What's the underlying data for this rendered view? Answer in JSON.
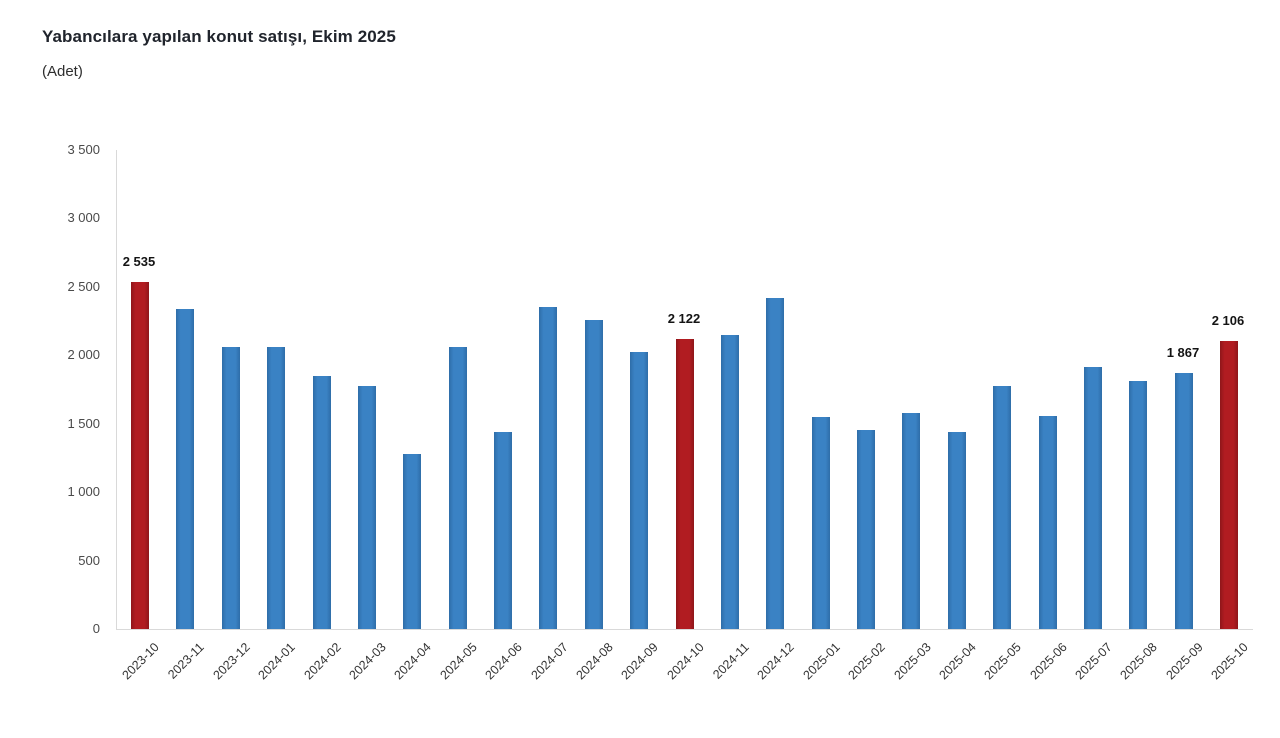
{
  "header": {
    "title": "Yabancılara yapılan konut satışı, Ekim 2025",
    "subtitle": "(Adet)"
  },
  "chart_data": {
    "type": "bar",
    "title": "Yabancılara yapılan konut satışı, Ekim 2025",
    "unit_label": "(Adet)",
    "xlabel": "",
    "ylabel": "",
    "ylim": [
      0,
      3500
    ],
    "ytick_step": 500,
    "ytick_labels": [
      "0",
      "500",
      "1 000",
      "1 500",
      "2 000",
      "2 500",
      "3 000",
      "3 500"
    ],
    "grid": false,
    "legend": "none",
    "categories": [
      "2023-10",
      "2023-11",
      "2023-12",
      "2024-01",
      "2024-02",
      "2024-03",
      "2024-04",
      "2024-05",
      "2024-06",
      "2024-07",
      "2024-08",
      "2024-09",
      "2024-10",
      "2024-11",
      "2024-12",
      "2025-01",
      "2025-02",
      "2025-03",
      "2025-04",
      "2025-05",
      "2025-06",
      "2025-07",
      "2025-08",
      "2025-09",
      "2025-10"
    ],
    "values": [
      2535,
      2341,
      2062,
      2061,
      1846,
      1772,
      1277,
      2064,
      1440,
      2350,
      2255,
      2021,
      2122,
      2149,
      2416,
      1546,
      1453,
      1578,
      1440,
      1773,
      1560,
      1915,
      1810,
      1867,
      2106
    ],
    "highlight_indices": [
      0,
      12,
      24
    ],
    "colors": {
      "bar_default": "#3a82c4",
      "bar_default_edge": "#2e6da8",
      "bar_highlight": "#b11c21",
      "bar_highlight_edge": "#8e161a",
      "axis_line": "#d9d9d9",
      "tick_text": "#4a4a4a",
      "title_text": "#20242c"
    },
    "data_labels": [
      {
        "index": 0,
        "text": "2 535"
      },
      {
        "index": 12,
        "text": "2 122"
      },
      {
        "index": 23,
        "text": "1 867"
      },
      {
        "index": 24,
        "text": "2 106"
      }
    ]
  }
}
